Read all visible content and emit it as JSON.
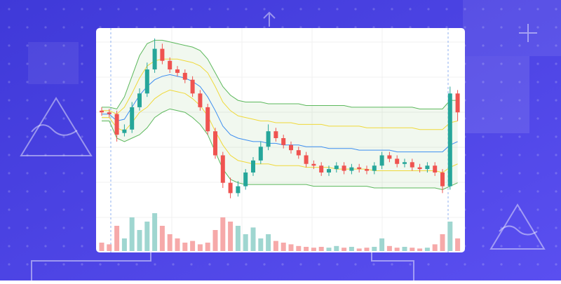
{
  "chart_data": {
    "type": "candlestick",
    "open": [
      56,
      55,
      54,
      43,
      45,
      58,
      66,
      80,
      92,
      85,
      80,
      78,
      74,
      66,
      58,
      44,
      30,
      14,
      8,
      12,
      20,
      27,
      35,
      44,
      40,
      36,
      33,
      30,
      25,
      24,
      20,
      22,
      24,
      21,
      23,
      22,
      21,
      24,
      30,
      28,
      25,
      26,
      23,
      22,
      24,
      20,
      12,
      66
    ],
    "high": [
      58,
      57,
      56,
      48,
      61,
      69,
      84,
      98,
      95,
      87,
      82,
      80,
      76,
      68,
      60,
      46,
      32,
      17,
      15,
      22,
      29,
      38,
      48,
      46,
      42,
      38,
      35,
      32,
      27,
      26,
      24,
      26,
      26,
      25,
      25,
      24,
      26,
      32,
      32,
      30,
      28,
      28,
      25,
      26,
      26,
      22,
      70,
      68
    ],
    "low": [
      53,
      52,
      38,
      41,
      43,
      56,
      64,
      78,
      83,
      78,
      76,
      72,
      64,
      56,
      42,
      28,
      11,
      5,
      6,
      10,
      18,
      25,
      33,
      38,
      34,
      31,
      28,
      23,
      22,
      18,
      18,
      20,
      19,
      19,
      20,
      19,
      19,
      22,
      26,
      23,
      23,
      21,
      20,
      20,
      18,
      8,
      10,
      50
    ],
    "close": [
      55,
      54,
      42,
      45,
      58,
      66,
      80,
      92,
      85,
      80,
      78,
      74,
      66,
      58,
      44,
      30,
      14,
      8,
      12,
      20,
      27,
      35,
      44,
      40,
      36,
      33,
      30,
      25,
      24,
      20,
      22,
      24,
      21,
      23,
      22,
      21,
      24,
      30,
      28,
      25,
      26,
      23,
      22,
      24,
      20,
      12,
      66,
      55
    ],
    "volume": [
      10,
      8,
      30,
      15,
      40,
      25,
      35,
      45,
      30,
      20,
      15,
      10,
      12,
      8,
      10,
      25,
      40,
      35,
      30,
      20,
      28,
      15,
      20,
      12,
      10,
      8,
      6,
      5,
      4,
      5,
      4,
      6,
      4,
      5,
      3,
      4,
      5,
      15,
      6,
      4,
      5,
      4,
      3,
      4,
      8,
      20,
      35,
      15
    ],
    "up_color": "#26a69a",
    "down_color": "#ef5350",
    "volume_up_color": "#9fd6d0",
    "volume_down_color": "#f6a9a9",
    "band_fill": "rgba(140,200,120,0.12)",
    "bands": [
      {
        "color": "#5cb85c",
        "values": [
          58,
          58,
          57,
          64,
          76,
          88,
          95,
          97,
          97,
          96,
          95,
          94,
          93,
          91,
          86,
          78,
          70,
          65,
          62,
          61,
          61,
          61,
          60,
          60,
          60,
          60,
          60,
          59,
          59,
          59,
          59,
          59,
          59,
          58,
          58,
          58,
          58,
          58,
          58,
          58,
          58,
          58,
          57,
          57,
          57,
          57,
          62,
          62
        ]
      },
      {
        "color": "#f0d93a",
        "values": [
          56,
          56,
          54,
          58,
          66,
          75,
          82,
          85,
          86,
          86,
          86,
          85,
          84,
          82,
          78,
          70,
          61,
          56,
          53,
          52,
          51,
          50,
          50,
          49,
          49,
          49,
          48,
          48,
          48,
          48,
          47,
          47,
          47,
          47,
          47,
          46,
          46,
          46,
          46,
          46,
          46,
          46,
          45,
          45,
          45,
          45,
          49,
          50
        ]
      },
      {
        "color": "#3d8ef0",
        "values": [
          54,
          54,
          50,
          51,
          58,
          65,
          70,
          74,
          76,
          77,
          76,
          75,
          73,
          70,
          64,
          56,
          47,
          42,
          40,
          39,
          38,
          38,
          37,
          37,
          36,
          36,
          36,
          35,
          35,
          35,
          34,
          34,
          34,
          34,
          33,
          33,
          33,
          33,
          33,
          32,
          32,
          32,
          32,
          32,
          32,
          32,
          36,
          38
        ]
      },
      {
        "color": "#f0d93a",
        "values": [
          52,
          52,
          46,
          44,
          49,
          55,
          58,
          63,
          66,
          68,
          67,
          66,
          63,
          59,
          53,
          44,
          36,
          30,
          27,
          26,
          25,
          25,
          25,
          24,
          24,
          24,
          24,
          23,
          23,
          23,
          23,
          22,
          22,
          22,
          22,
          22,
          21,
          21,
          21,
          21,
          21,
          21,
          21,
          21,
          21,
          20,
          23,
          25
        ]
      },
      {
        "color": "#5cb85c",
        "values": [
          50,
          50,
          40,
          38,
          40,
          42,
          46,
          52,
          55,
          57,
          56,
          55,
          52,
          48,
          42,
          32,
          22,
          16,
          14,
          13,
          13,
          13,
          13,
          13,
          13,
          13,
          13,
          13,
          12,
          12,
          12,
          12,
          12,
          12,
          12,
          12,
          11,
          11,
          11,
          11,
          11,
          11,
          11,
          11,
          11,
          10,
          12,
          14
        ]
      }
    ],
    "ylim": [
      0,
      100
    ],
    "y2lim": [
      0,
      100
    ]
  }
}
